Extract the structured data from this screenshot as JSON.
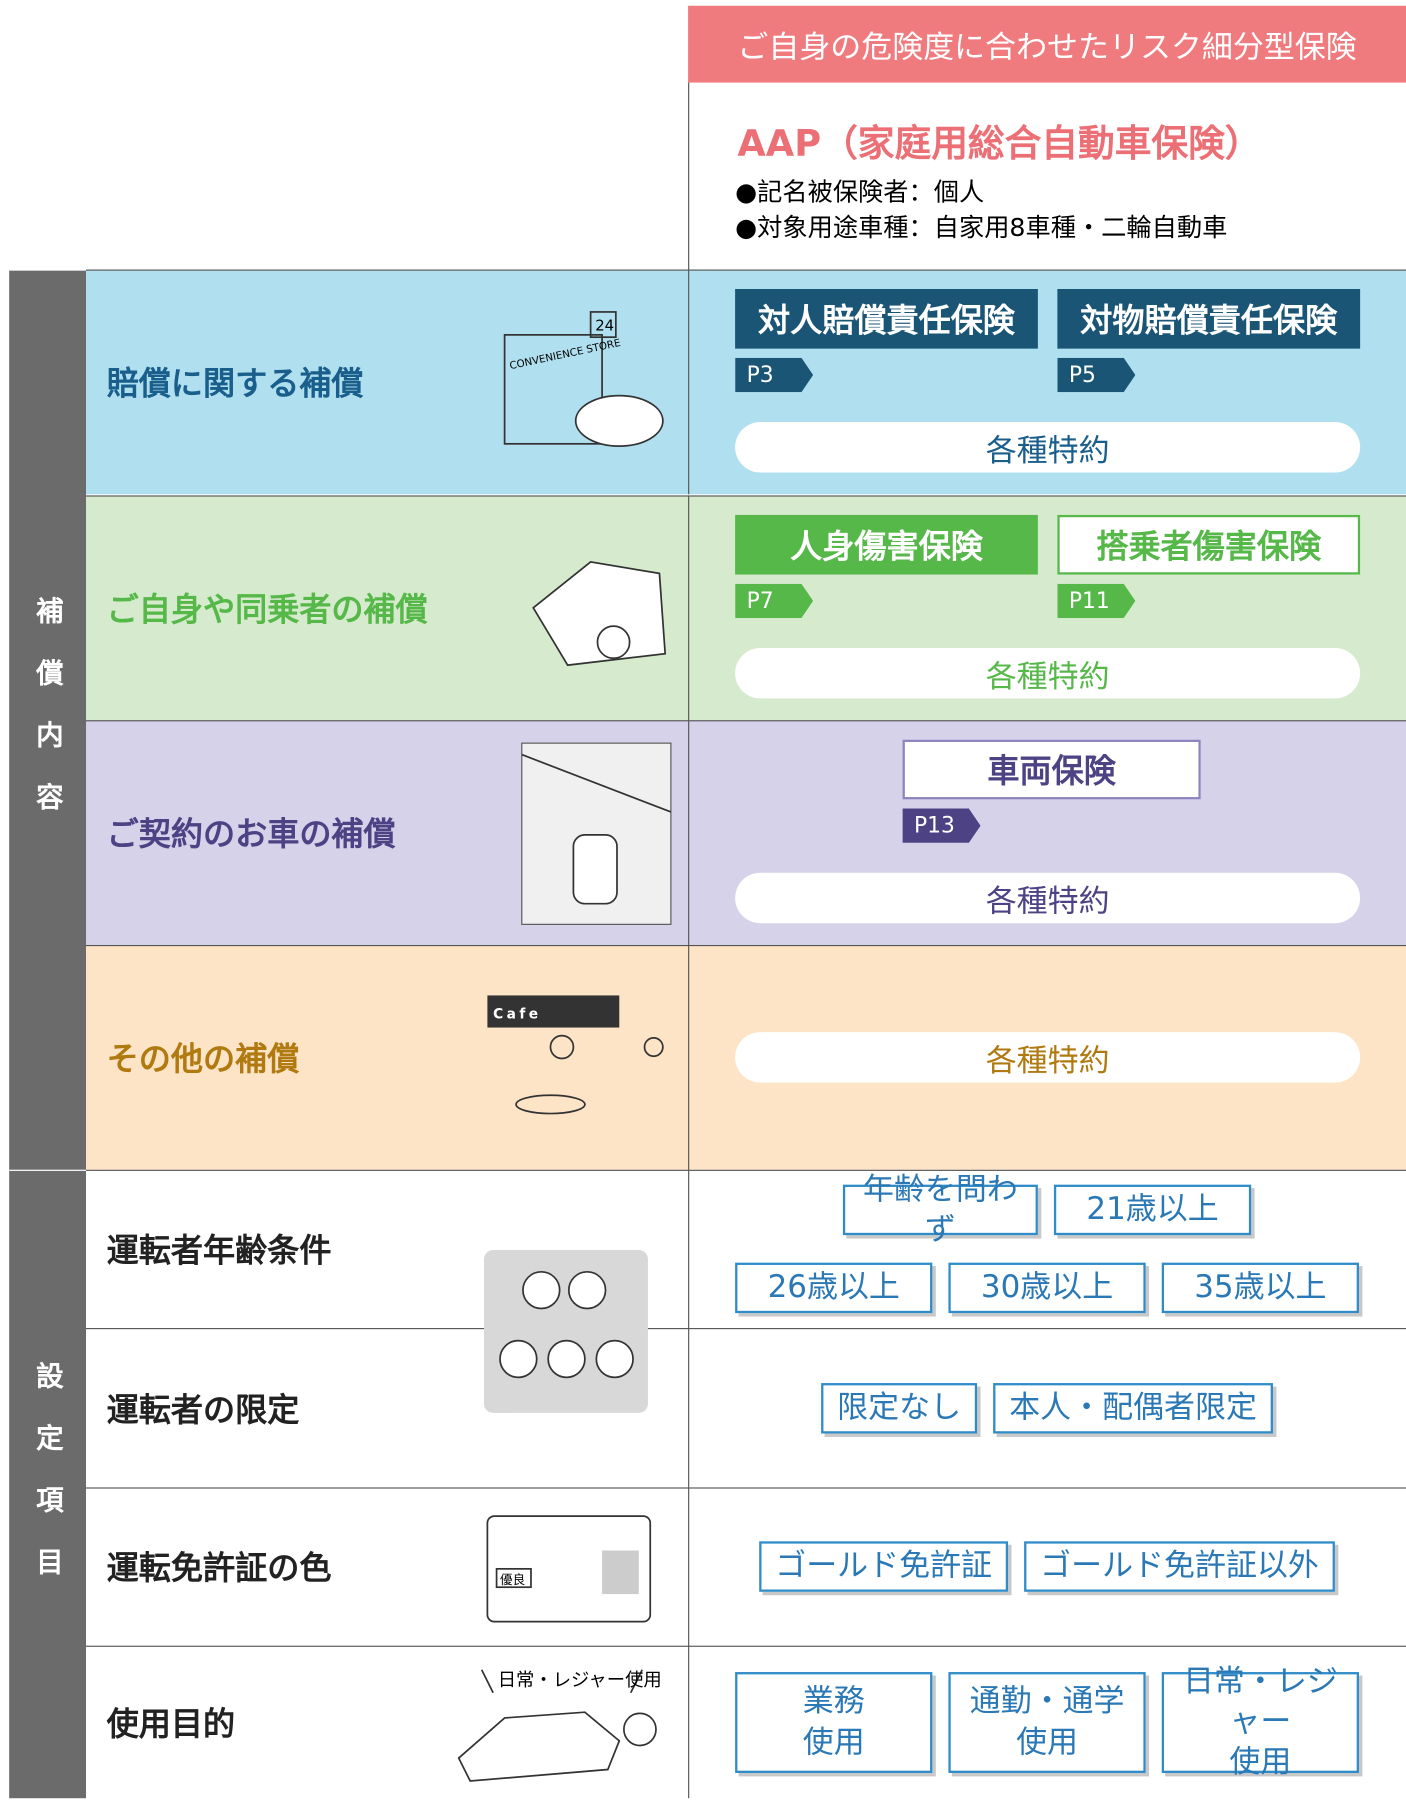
{
  "banner": "ご自身の危険度に合わせたリスク細分型保険",
  "product": {
    "title": "AAP（家庭用総合自動車保険）",
    "notes": [
      "●記名被保険者：個人",
      "●対象用途車種：自家用8車種・二輪自動車"
    ]
  },
  "coverage": {
    "label": "補償内容",
    "rows": [
      {
        "title": "賠償に関する補償",
        "plans": [
          {
            "name": "対人賠償責任保険",
            "page": "P3"
          },
          {
            "name": "対物賠償責任保険",
            "page": "P5"
          }
        ],
        "rider": "各種特約",
        "illustration_texts": [
          "24",
          "CONVENIENCE STORE"
        ]
      },
      {
        "title": "ご自身や同乗者の補償",
        "plans": [
          {
            "name": "人身傷害保険",
            "page": "P7"
          },
          {
            "name": "搭乗者傷害保険",
            "page": "P11"
          }
        ],
        "rider": "各種特約"
      },
      {
        "title": "ご契約のお車の補償",
        "plans": [
          {
            "name": "車両保険",
            "page": "P13"
          }
        ],
        "rider": "各種特約"
      },
      {
        "title": "その他の補償",
        "plans": [],
        "rider": "各種特約",
        "illustration_texts": [
          "Cafe"
        ]
      }
    ]
  },
  "settings": {
    "label": "設定項目",
    "rows": [
      {
        "title": "運転者年齢条件",
        "options": [
          "年齢を問わず",
          "21歳以上",
          "26歳以上",
          "30歳以上",
          "35歳以上"
        ]
      },
      {
        "title": "運転者の限定",
        "options": [
          "限定なし",
          "本人・配偶者限定"
        ]
      },
      {
        "title": "運転免許証の色",
        "options": [
          "ゴールド免許証",
          "ゴールド免許証以外"
        ],
        "illustration_texts": [
          "優良"
        ]
      },
      {
        "title": "使用目的",
        "options": [
          "業務\n使用",
          "通勤・通学\n使用",
          "日常・レジャー\n使用"
        ],
        "illustration_texts": [
          "日常・レジャー使用"
        ]
      }
    ]
  }
}
